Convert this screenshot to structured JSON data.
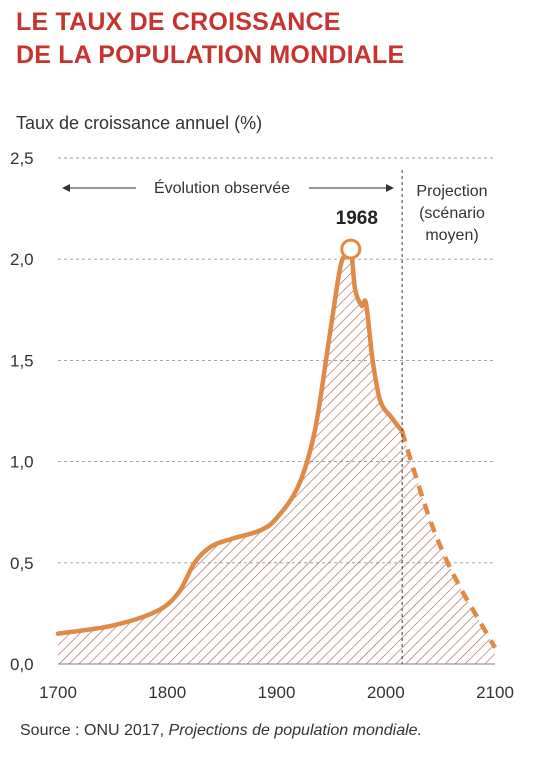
{
  "title": {
    "line1": "LE TAUX DE CROISSANCE",
    "line2": "DE LA POPULATION MONDIALE"
  },
  "source": {
    "prefix": "Source : ONU 2017, ",
    "italic": "Projections de population mondiale."
  },
  "colors": {
    "title": "#c8332e",
    "line": "#e08a45",
    "hatch": "#9b5a4a",
    "grid": "#999999"
  },
  "chart_data": {
    "type": "area",
    "ylabel": "Taux de croissance annuel (%)",
    "xlim": [
      1700,
      2100
    ],
    "ylim": [
      0,
      2.5
    ],
    "x_ticks": [
      "1700",
      "1800",
      "1900",
      "2000",
      "2100"
    ],
    "y_ticks": [
      "0,0",
      "0,5",
      "1,0",
      "1,5",
      "2,0",
      "2,5"
    ],
    "grid": "horizontal dashed",
    "observed": [
      [
        1700,
        0.15
      ],
      [
        1750,
        0.19
      ],
      [
        1790,
        0.26
      ],
      [
        1810,
        0.35
      ],
      [
        1825,
        0.5
      ],
      [
        1840,
        0.58
      ],
      [
        1860,
        0.62
      ],
      [
        1885,
        0.66
      ],
      [
        1900,
        0.72
      ],
      [
        1920,
        0.88
      ],
      [
        1935,
        1.15
      ],
      [
        1948,
        1.6
      ],
      [
        1958,
        1.95
      ],
      [
        1963,
        2.02
      ],
      [
        1968,
        2.05
      ],
      [
        1972,
        1.85
      ],
      [
        1978,
        1.77
      ],
      [
        1982,
        1.78
      ],
      [
        1988,
        1.5
      ],
      [
        1995,
        1.3
      ],
      [
        2005,
        1.22
      ],
      [
        2015,
        1.15
      ]
    ],
    "projection": [
      [
        2015,
        1.15
      ],
      [
        2025,
        0.97
      ],
      [
        2040,
        0.72
      ],
      [
        2055,
        0.52
      ],
      [
        2070,
        0.36
      ],
      [
        2085,
        0.22
      ],
      [
        2100,
        0.08
      ]
    ],
    "divider_year": 2015,
    "peak": {
      "year": 1968,
      "value": 2.05,
      "label": "1968"
    },
    "annotations": {
      "observed": "Évolution observée",
      "projection_lines": [
        "Projection",
        "(scénario",
        "moyen)"
      ]
    }
  }
}
